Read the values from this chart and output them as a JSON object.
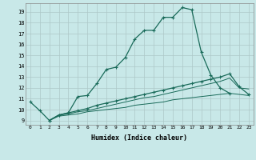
{
  "background_color": "#c8e8e8",
  "grid_color": "#adc8c8",
  "line_color": "#1a6b5a",
  "xlabel": "Humidex (Indice chaleur)",
  "line1_x": [
    0,
    1,
    2,
    3,
    4,
    5,
    6,
    7,
    8,
    9,
    10,
    11,
    12,
    13,
    14,
    15,
    16,
    17,
    18,
    19,
    20,
    21
  ],
  "line1_y": [
    10.7,
    9.9,
    9.0,
    9.5,
    9.7,
    11.2,
    11.3,
    12.4,
    13.7,
    13.9,
    14.8,
    16.5,
    17.3,
    17.3,
    18.5,
    18.5,
    19.4,
    19.2,
    15.3,
    13.2,
    12.0,
    11.5
  ],
  "line2_x": [
    2,
    3,
    4,
    5,
    6,
    7,
    8,
    9,
    10,
    11,
    12,
    13,
    14,
    15,
    16,
    17,
    18,
    19,
    20,
    21,
    22,
    23
  ],
  "line2_y": [
    9.0,
    9.5,
    9.7,
    9.9,
    10.1,
    10.4,
    10.6,
    10.8,
    11.0,
    11.2,
    11.4,
    11.6,
    11.8,
    12.0,
    12.2,
    12.4,
    12.6,
    12.8,
    13.0,
    13.3,
    12.1,
    11.4
  ],
  "line3_x": [
    2,
    3,
    4,
    5,
    6,
    7,
    8,
    9,
    10,
    11,
    12,
    13,
    14,
    15,
    16,
    17,
    18,
    19,
    20,
    21,
    22,
    23
  ],
  "line3_y": [
    9.0,
    9.5,
    9.6,
    9.8,
    9.9,
    10.1,
    10.3,
    10.5,
    10.7,
    10.9,
    11.1,
    11.2,
    11.4,
    11.6,
    11.8,
    12.0,
    12.2,
    12.4,
    12.6,
    12.9,
    12.0,
    11.9
  ],
  "line4_x": [
    2,
    3,
    4,
    5,
    6,
    7,
    8,
    9,
    10,
    11,
    12,
    13,
    14,
    15,
    16,
    17,
    18,
    19,
    20,
    21,
    22,
    23
  ],
  "line4_y": [
    9.0,
    9.4,
    9.5,
    9.6,
    9.8,
    9.9,
    10.0,
    10.1,
    10.2,
    10.4,
    10.5,
    10.6,
    10.7,
    10.9,
    11.0,
    11.1,
    11.2,
    11.3,
    11.4,
    11.5,
    11.4,
    11.3
  ],
  "xlim": [
    -0.5,
    23.5
  ],
  "ylim": [
    8.6,
    19.8
  ]
}
